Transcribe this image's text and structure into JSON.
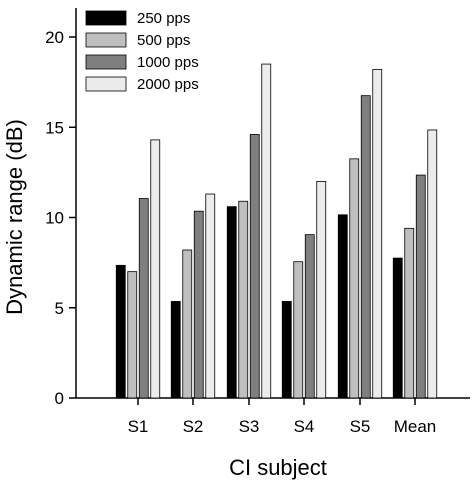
{
  "chart_data": {
    "type": "bar",
    "title": "",
    "xlabel": "CI subject",
    "ylabel": "Dynamic range (dB)",
    "categories": [
      "S1",
      "S2",
      "S3",
      "S4",
      "S5",
      "Mean"
    ],
    "ylim": [
      0,
      20
    ],
    "yticks": [
      0,
      5,
      10,
      15,
      20
    ],
    "grid": false,
    "legend_position": "top-left",
    "series": [
      {
        "name": "250 pps",
        "color": "#000000",
        "values": [
          7.35,
          5.35,
          10.6,
          5.35,
          10.15,
          7.75
        ]
      },
      {
        "name": "500 pps",
        "color": "#bfbfbf",
        "values": [
          7.0,
          8.2,
          10.9,
          7.55,
          13.25,
          9.4
        ]
      },
      {
        "name": "1000 pps",
        "color": "#7f7f7f",
        "values": [
          11.05,
          10.35,
          14.6,
          9.05,
          16.75,
          12.35
        ]
      },
      {
        "name": "2000 pps",
        "color": "#ececec",
        "values": [
          14.3,
          11.3,
          18.5,
          12.0,
          18.2,
          14.85
        ]
      }
    ]
  }
}
